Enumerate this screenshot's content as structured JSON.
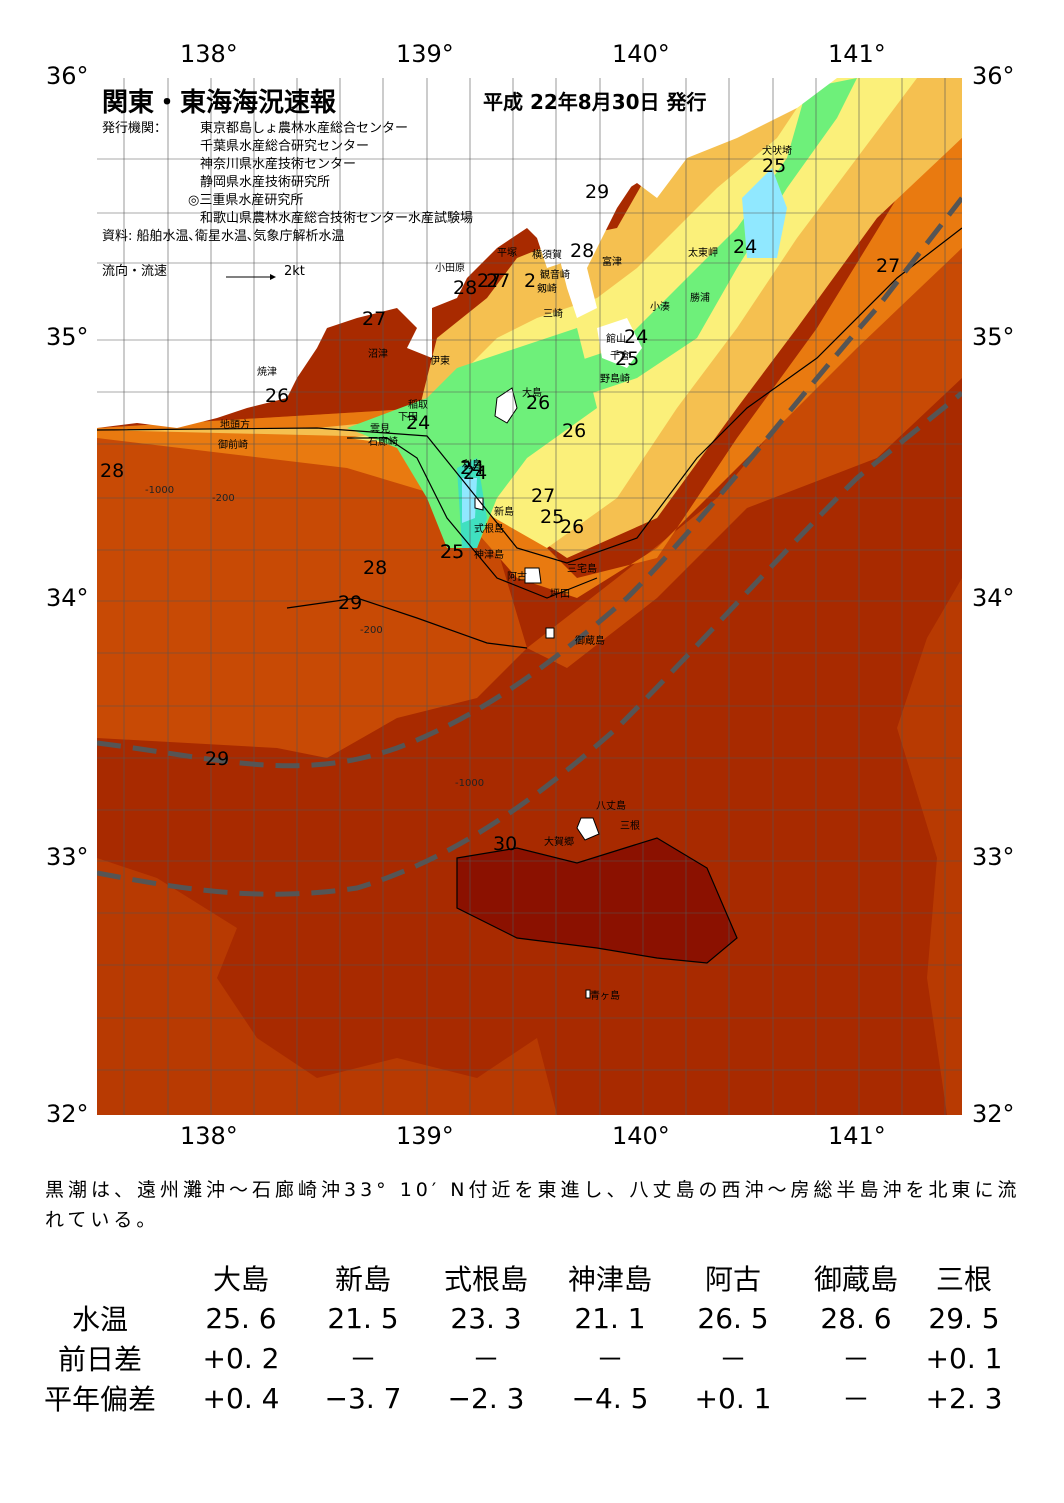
{
  "lon_labels": [
    "138°",
    "139°",
    "140°",
    "141°"
  ],
  "lat_labels": [
    "36°",
    "35°",
    "34°",
    "33°",
    "32°"
  ],
  "title": "関東・東海海況速報",
  "issue": "平成 22年8月30日 発行",
  "publisher_heading": "発行機関：",
  "publishers": [
    "東京都島しょ農林水産総合センター",
    "千葉県水産総合研究センター",
    "神奈川県水産技術センター",
    "静岡県水産技術研究所",
    "◎三重県水産研究所",
    "和歌山県農林水産総合技術センター水産試験場"
  ],
  "source": "資料: 船舶水温､衛星水温､気象庁解析水温",
  "flow_legend": "流向・流速",
  "flow_speed": "2kt",
  "colors": {
    "t30": "#8b1100",
    "t29": "#a82a00",
    "t28": "#c84a05",
    "t27": "#e97a10",
    "t26": "#f5c050",
    "t25": "#fbf07a",
    "t24": "#6ef07a",
    "t23": "#40e0c0",
    "t22": "#90e8ff",
    "land": "#ffffff",
    "kuroshio_axis": "#555555"
  },
  "place_names": [
    "犬吠埼",
    "太東岬",
    "勝浦",
    "小湊",
    "館山",
    "千倉",
    "野島崎",
    "富津",
    "観音崎",
    "横須賀",
    "平塚",
    "剱崎",
    "三崎",
    "小田原",
    "沼津",
    "伊東",
    "焼津",
    "地頭方",
    "御前崎",
    "稲取",
    "下田",
    "雲見",
    "石廊崎",
    "大島",
    "利島",
    "新島",
    "式根島",
    "神津島",
    "三宅島",
    "阿古",
    "坪田",
    "御蔵島",
    "八丈島",
    "三根",
    "大賀郷",
    "青ヶ島"
  ],
  "isotherm_labels": [
    "29",
    "28",
    "27",
    "27",
    "2",
    "28",
    "27",
    "26",
    "24",
    "26",
    "26",
    "24",
    "25",
    "24",
    "24",
    "25",
    "25",
    "27",
    "24",
    "27",
    "25",
    "26",
    "25",
    "28",
    "28",
    "29",
    "29",
    "30"
  ],
  "depth_labels": [
    "-200",
    "-1000",
    "-200",
    "-1000"
  ],
  "comment": "黒潮は、遠州灘沖～石廊崎沖33° 10′ N付近を東進し、八丈島の西沖～房総半島沖を北東に流れている。",
  "table": {
    "headers": [
      "大島",
      "新島",
      "式根島",
      "神津島",
      "阿古",
      "御蔵島",
      "三根"
    ],
    "rows": [
      {
        "label": "水温",
        "values": [
          "25. 6",
          "21. 5",
          "23. 3",
          "21. 1",
          "26. 5",
          "28. 6",
          "29. 5"
        ]
      },
      {
        "label": "前日差",
        "values": [
          "+0. 2",
          "－",
          "－",
          "－",
          "－",
          "－",
          "+0. 1"
        ]
      },
      {
        "label": "平年偏差",
        "values": [
          "+0. 4",
          "−3. 7",
          "−2. 3",
          "−4. 5",
          "+0. 1",
          "－",
          "+2. 3"
        ]
      }
    ]
  }
}
